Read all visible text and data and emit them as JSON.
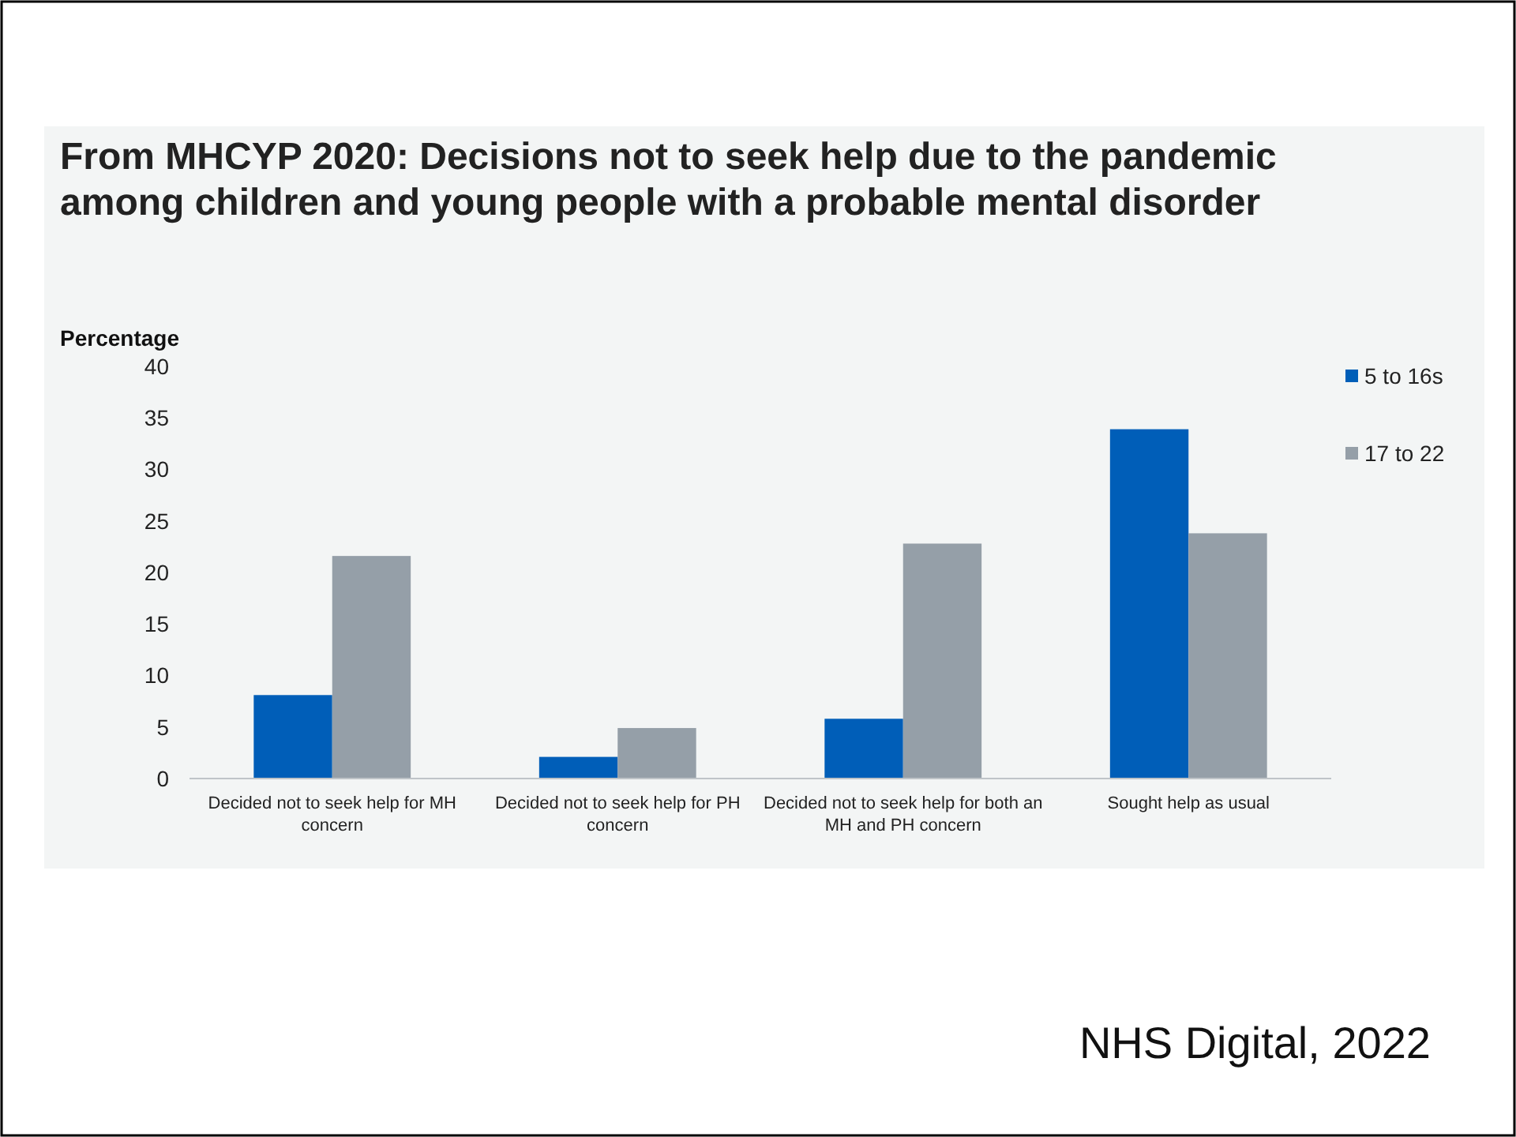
{
  "chart_data": {
    "type": "bar",
    "title": "From MHCYP 2020: Decisions not to seek help due to the pandemic among children and young people with a probable mental disorder",
    "ylabel": "Percentage",
    "categories": [
      "Decided not to seek help for MH concern",
      "Decided not to seek help for PH concern",
      "Decided not to seek help for both an MH and PH concern",
      "Sought help as usual"
    ],
    "series": [
      {
        "name": "5 to 16s",
        "color": "#005eb8",
        "values": [
          8.1,
          2.1,
          5.8,
          33.9
        ]
      },
      {
        "name": "17 to 22",
        "color": "#959fa8",
        "values": [
          21.6,
          4.9,
          22.8,
          23.8
        ]
      }
    ],
    "ylim": [
      0,
      40
    ],
    "yticks": [
      0,
      5,
      10,
      15,
      20,
      25,
      30,
      35,
      40
    ],
    "grid": false,
    "legend": "right",
    "annotations": [
      "NHS Digital, 2022"
    ]
  }
}
